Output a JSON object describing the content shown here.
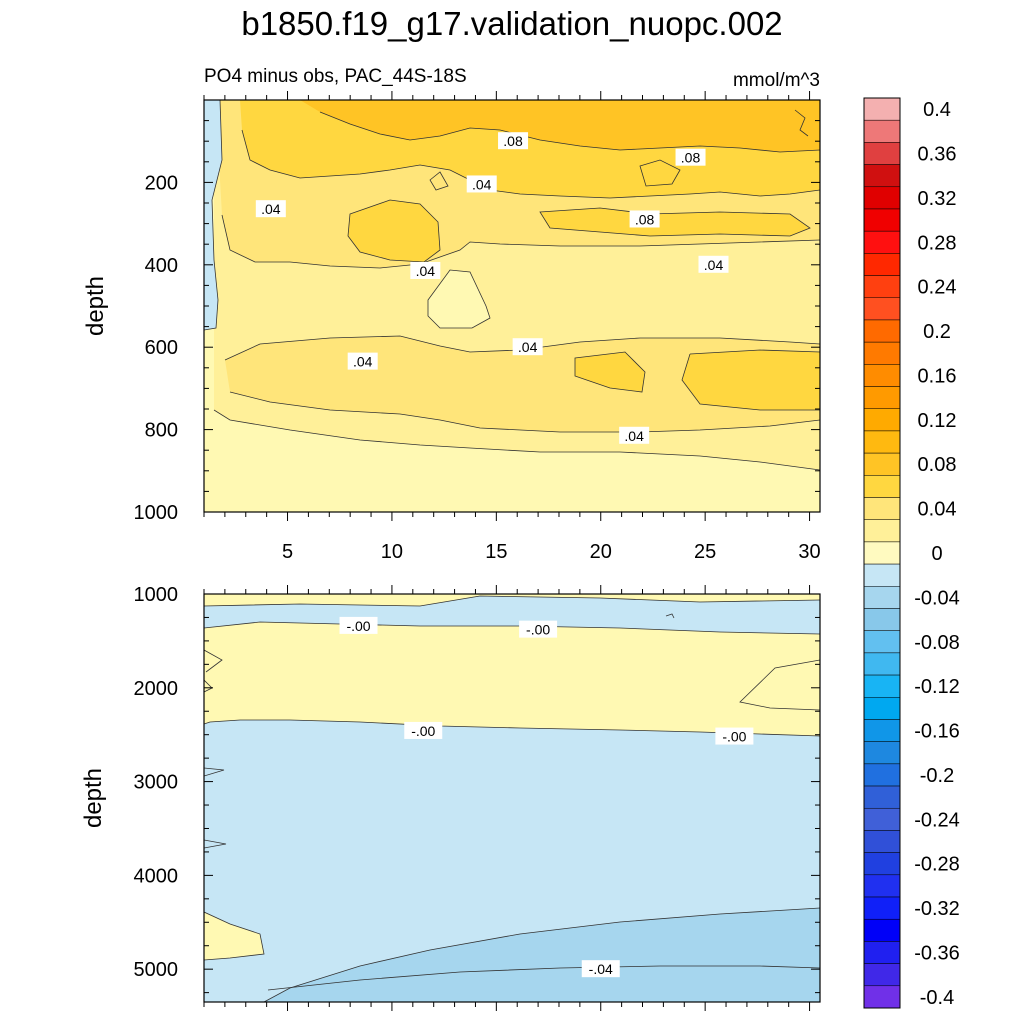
{
  "figure": {
    "title": "b1850.f19_g17.validation_nuopc.002"
  },
  "colors": {
    "pos_light": "#fff9b3",
    "pos_1": "#fff099",
    "pos_2": "#ffe57a",
    "pos_3": "#ffd740",
    "pos_4": "#ffc425",
    "neg_1": "#c6e6f5",
    "neg_2": "#a6d6ee",
    "contour_line": "#333333"
  },
  "chart_data": [
    {
      "type": "contour",
      "panel": "upper",
      "title_left": "PO4 minus obs, PAC_44S-18S",
      "title_right": "mmol/m^3",
      "ylabel": "depth",
      "xlim": [
        1,
        30.5
      ],
      "ylim": [
        1000,
        0
      ],
      "yticks": [
        "200",
        "400",
        "600",
        "800",
        "1000"
      ],
      "xticks": [
        "5",
        "10",
        "15",
        "20",
        "25",
        "30"
      ],
      "contour_labels": [
        {
          "text": ".08",
          "x": 15.8,
          "y": 100
        },
        {
          "text": ".08",
          "x": 24.3,
          "y": 140
        },
        {
          "text": ".04",
          "x": 4.2,
          "y": 265
        },
        {
          "text": ".04",
          "x": 14.3,
          "y": 205
        },
        {
          "text": ".08",
          "x": 22.1,
          "y": 290
        },
        {
          "text": ".04",
          "x": 11.6,
          "y": 415
        },
        {
          "text": ".04",
          "x": 25.4,
          "y": 400
        },
        {
          "text": ".04",
          "x": 16.5,
          "y": 600
        },
        {
          "text": ".04",
          "x": 8.6,
          "y": 635
        },
        {
          "text": ".04",
          "x": 21.6,
          "y": 815
        }
      ]
    },
    {
      "type": "contour",
      "panel": "lower",
      "ylabel": "depth",
      "xlim": [
        1,
        30.5
      ],
      "ylim": [
        5350,
        1000
      ],
      "yticks": [
        "1000",
        "2000",
        "3000",
        "4000",
        "5000"
      ],
      "contour_labels": [
        {
          "text": "-.00",
          "x": 8.4,
          "y": 1340
        },
        {
          "text": "-.00",
          "x": 17.0,
          "y": 1380
        },
        {
          "text": "-.00",
          "x": 11.5,
          "y": 2460
        },
        {
          "text": "-.00",
          "x": 26.4,
          "y": 2520
        },
        {
          "text": "-.04",
          "x": 20.0,
          "y": 5000
        }
      ]
    }
  ],
  "colorbar": {
    "levels": [
      {
        "label": "0.4",
        "color": "#f4b0b0"
      },
      {
        "label": "",
        "color": "#ee7878"
      },
      {
        "label": "0.36",
        "color": "#e04040"
      },
      {
        "label": "",
        "color": "#d01010"
      },
      {
        "label": "0.32",
        "color": "#e00000"
      },
      {
        "label": "",
        "color": "#f00000"
      },
      {
        "label": "0.28",
        "color": "#ff1010"
      },
      {
        "label": "",
        "color": "#ff2800"
      },
      {
        "label": "0.24",
        "color": "#ff4010"
      },
      {
        "label": "",
        "color": "#ff5020"
      },
      {
        "label": "0.2",
        "color": "#ff6a00"
      },
      {
        "label": "",
        "color": "#ff7a00"
      },
      {
        "label": "0.16",
        "color": "#ff8c00"
      },
      {
        "label": "",
        "color": "#ff9a00"
      },
      {
        "label": "0.12",
        "color": "#ffaa00"
      },
      {
        "label": "",
        "color": "#ffb910"
      },
      {
        "label": "0.08",
        "color": "#ffc425"
      },
      {
        "label": "",
        "color": "#ffd740"
      },
      {
        "label": "0.04",
        "color": "#ffe57a"
      },
      {
        "label": "",
        "color": "#fff099"
      },
      {
        "label": "0",
        "color": "#fffac0"
      },
      {
        "label": "",
        "color": "#c6e6f5"
      },
      {
        "label": "-0.04",
        "color": "#a6d6ee"
      },
      {
        "label": "",
        "color": "#88c8ea"
      },
      {
        "label": "-0.08",
        "color": "#62c0f0"
      },
      {
        "label": "",
        "color": "#40b8f0"
      },
      {
        "label": "-0.12",
        "color": "#18b4f4"
      },
      {
        "label": "",
        "color": "#00a8f0"
      },
      {
        "label": "-0.16",
        "color": "#1096e8"
      },
      {
        "label": "",
        "color": "#1e88e0"
      },
      {
        "label": "-0.2",
        "color": "#2070e0"
      },
      {
        "label": "",
        "color": "#3060d8"
      },
      {
        "label": "-0.24",
        "color": "#4060d8"
      },
      {
        "label": "",
        "color": "#3050d8"
      },
      {
        "label": "-0.28",
        "color": "#2040e0"
      },
      {
        "label": "",
        "color": "#2030f0"
      },
      {
        "label": "-0.32",
        "color": "#1020f8"
      },
      {
        "label": "",
        "color": "#0000f8"
      },
      {
        "label": "-0.36",
        "color": "#2020f0"
      },
      {
        "label": "",
        "color": "#4028e8"
      },
      {
        "label": "-0.4",
        "color": "#7030e8"
      }
    ]
  }
}
